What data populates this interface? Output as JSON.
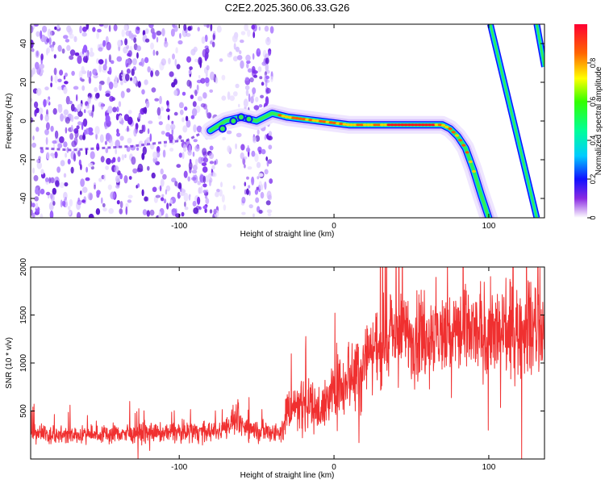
{
  "title": "C2E2.2025.360.06.33.G26",
  "chart_data": [
    {
      "type": "heatmap",
      "xlabel": "Height of straight line (km)",
      "ylabel": "Frequency (Hz)",
      "xlim": [
        -196,
        136
      ],
      "ylim": [
        -50,
        50
      ],
      "xticks": [
        -100,
        0,
        100
      ],
      "yticks": [
        -40,
        -20,
        0,
        20,
        40
      ],
      "colorbar": {
        "label": "Normalized spectral amplitude",
        "range": [
          0,
          1
        ],
        "ticks": [
          0,
          0.2,
          0.4,
          0.6,
          0.8
        ]
      },
      "noise_region_x": [
        -196,
        -40
      ],
      "signal_track": {
        "x": [
          -80,
          -70,
          -60,
          -50,
          -40,
          -30,
          -20,
          -10,
          0,
          10,
          20,
          30,
          40,
          50,
          60,
          70,
          75,
          80,
          85,
          90,
          95,
          100
        ],
        "y": [
          -5,
          0,
          2,
          0,
          4,
          2,
          1,
          0,
          -1,
          -2,
          -2,
          -2,
          -2,
          -2,
          -2,
          -2,
          -4,
          -8,
          -14,
          -25,
          -38,
          -50
        ]
      },
      "faint_track": {
        "x": [
          -190,
          -170,
          -150,
          -130,
          -110,
          -95,
          -85
        ],
        "y": [
          -14,
          -15,
          -14,
          -13,
          -11,
          -10,
          -6
        ]
      },
      "aliased_lines": [
        {
          "x": [
            101,
            131
          ],
          "y": [
            50,
            -50
          ]
        },
        {
          "x": [
            131,
            136
          ],
          "y": [
            50,
            28
          ]
        }
      ]
    },
    {
      "type": "line",
      "xlabel": "Height of straight line (km)",
      "ylabel": "SNR (10 * v/v)",
      "xlim": [
        -196,
        136
      ],
      "ylim": [
        0,
        2000
      ],
      "xticks": [
        -100,
        0,
        100
      ],
      "yticks": [
        500,
        1000,
        1500,
        2000
      ],
      "series": [
        {
          "color": "#f03030",
          "x": [
            -196,
            -170,
            -150,
            -130,
            -110,
            -90,
            -75,
            -62,
            -58,
            -50,
            -40,
            -33,
            -30,
            -25,
            -20,
            -15,
            -10,
            -5,
            0,
            5,
            10,
            15,
            20,
            25,
            30,
            40,
            50,
            60,
            70,
            80,
            90,
            100,
            110,
            120,
            130,
            136
          ],
          "y": [
            270,
            250,
            260,
            270,
            270,
            290,
            280,
            420,
            330,
            300,
            280,
            290,
            550,
            550,
            600,
            560,
            520,
            590,
            700,
            780,
            900,
            950,
            1080,
            1150,
            1200,
            1280,
            1300,
            1300,
            1290,
            1320,
            1300,
            1310,
            1300,
            1320,
            1330,
            1340
          ]
        }
      ]
    }
  ]
}
